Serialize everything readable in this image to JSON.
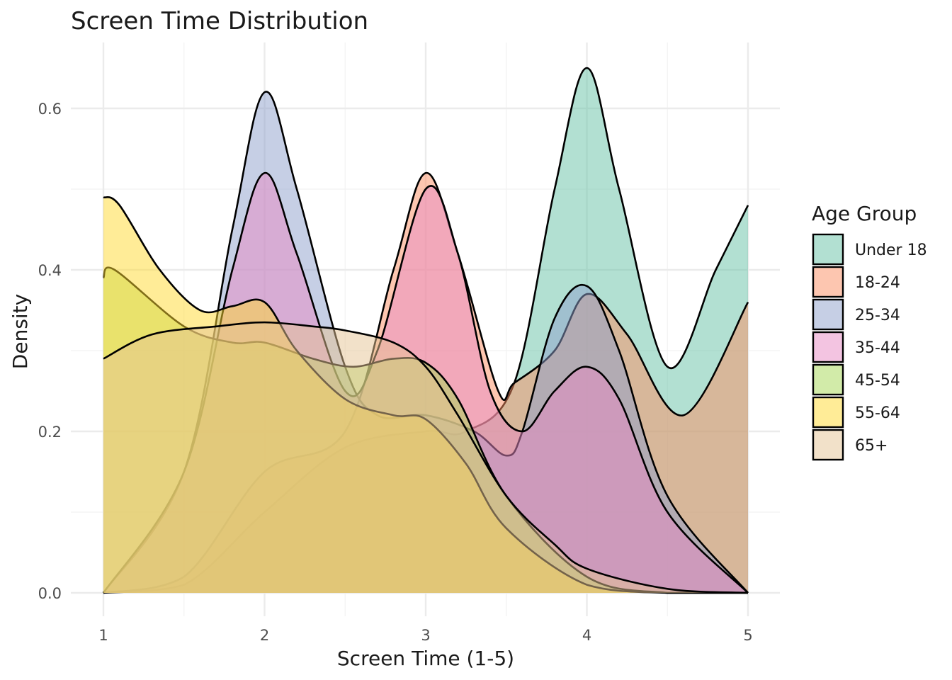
{
  "chart_data": {
    "type": "area",
    "subtype": "density",
    "title": "Screen Time Distribution",
    "xlabel": "Screen Time (1-5)",
    "ylabel": "Density",
    "xlim": [
      1,
      5
    ],
    "ylim": [
      0,
      0.65
    ],
    "x_ticks": [
      "1",
      "2",
      "3",
      "4",
      "5"
    ],
    "y_ticks": [
      "0.0",
      "0.2",
      "0.4",
      "0.6"
    ],
    "grid": true,
    "legend": {
      "title": "Age Group",
      "position": "right"
    },
    "fill_opacity": 0.5,
    "series": [
      {
        "name": "Under 18",
        "color": "#66C2A5",
        "points": [
          [
            1,
            0
          ],
          [
            1.5,
            0.01
          ],
          [
            2,
            0.1
          ],
          [
            2.5,
            0.18
          ],
          [
            3,
            0.2
          ],
          [
            3.25,
            0.2
          ],
          [
            3.55,
            0.26
          ],
          [
            3.8,
            0.5
          ],
          [
            4,
            0.65
          ],
          [
            4.2,
            0.5
          ],
          [
            4.5,
            0.28
          ],
          [
            4.8,
            0.4
          ],
          [
            5,
            0.48
          ]
        ]
      },
      {
        "name": "18-24",
        "color": "#FC8D62",
        "points": [
          [
            1,
            0
          ],
          [
            1.5,
            0.02
          ],
          [
            2,
            0.15
          ],
          [
            2.5,
            0.2
          ],
          [
            2.8,
            0.4
          ],
          [
            3,
            0.52
          ],
          [
            3.2,
            0.42
          ],
          [
            3.45,
            0.25
          ],
          [
            3.55,
            0.26
          ],
          [
            3.8,
            0.3
          ],
          [
            4,
            0.37
          ],
          [
            4.25,
            0.32
          ],
          [
            4.6,
            0.22
          ],
          [
            5,
            0.36
          ]
        ]
      },
      {
        "name": "25-34",
        "color": "#8DA0CB",
        "points": [
          [
            1,
            0
          ],
          [
            1.5,
            0.15
          ],
          [
            1.8,
            0.45
          ],
          [
            2,
            0.62
          ],
          [
            2.2,
            0.5
          ],
          [
            2.5,
            0.28
          ],
          [
            2.7,
            0.22
          ],
          [
            3,
            0.22
          ],
          [
            3.3,
            0.2
          ],
          [
            3.5,
            0.17
          ],
          [
            3.6,
            0.2
          ],
          [
            3.8,
            0.34
          ],
          [
            4,
            0.38
          ],
          [
            4.2,
            0.3
          ],
          [
            4.5,
            0.12
          ],
          [
            5,
            0
          ]
        ]
      },
      {
        "name": "35-44",
        "color": "#E78AC3",
        "points": [
          [
            1,
            0
          ],
          [
            1.5,
            0.15
          ],
          [
            1.8,
            0.4
          ],
          [
            2,
            0.52
          ],
          [
            2.2,
            0.42
          ],
          [
            2.5,
            0.25
          ],
          [
            2.7,
            0.3
          ],
          [
            3,
            0.5
          ],
          [
            3.2,
            0.42
          ],
          [
            3.4,
            0.25
          ],
          [
            3.6,
            0.2
          ],
          [
            3.8,
            0.25
          ],
          [
            4,
            0.28
          ],
          [
            4.2,
            0.24
          ],
          [
            4.5,
            0.1
          ],
          [
            5,
            0
          ]
        ]
      },
      {
        "name": "45-54",
        "color": "#A6D854",
        "points": [
          [
            1,
            0.39
          ],
          [
            1.07,
            0.4
          ],
          [
            1.5,
            0.33
          ],
          [
            1.8,
            0.31
          ],
          [
            2,
            0.31
          ],
          [
            2.3,
            0.29
          ],
          [
            2.55,
            0.28
          ],
          [
            2.8,
            0.29
          ],
          [
            3,
            0.285
          ],
          [
            3.2,
            0.24
          ],
          [
            3.5,
            0.12
          ],
          [
            4,
            0.02
          ],
          [
            4.5,
            0
          ],
          [
            5,
            0
          ]
        ]
      },
      {
        "name": "55-64",
        "color": "#FFD92F",
        "points": [
          [
            1,
            0.49
          ],
          [
            1.1,
            0.48
          ],
          [
            1.35,
            0.4
          ],
          [
            1.6,
            0.35
          ],
          [
            1.8,
            0.355
          ],
          [
            2,
            0.36
          ],
          [
            2.2,
            0.3
          ],
          [
            2.5,
            0.24
          ],
          [
            2.8,
            0.22
          ],
          [
            3,
            0.215
          ],
          [
            3.25,
            0.16
          ],
          [
            3.5,
            0.08
          ],
          [
            4,
            0.01
          ],
          [
            4.5,
            0
          ],
          [
            5,
            0
          ]
        ]
      },
      {
        "name": "65+",
        "color": "#E5C494",
        "points": [
          [
            1,
            0.29
          ],
          [
            1.3,
            0.32
          ],
          [
            1.7,
            0.33
          ],
          [
            2,
            0.335
          ],
          [
            2.3,
            0.33
          ],
          [
            2.5,
            0.325
          ],
          [
            2.8,
            0.31
          ],
          [
            3,
            0.28
          ],
          [
            3.2,
            0.22
          ],
          [
            3.5,
            0.12
          ],
          [
            3.8,
            0.06
          ],
          [
            4,
            0.03
          ],
          [
            4.5,
            0.005
          ],
          [
            5,
            0
          ]
        ]
      }
    ]
  }
}
